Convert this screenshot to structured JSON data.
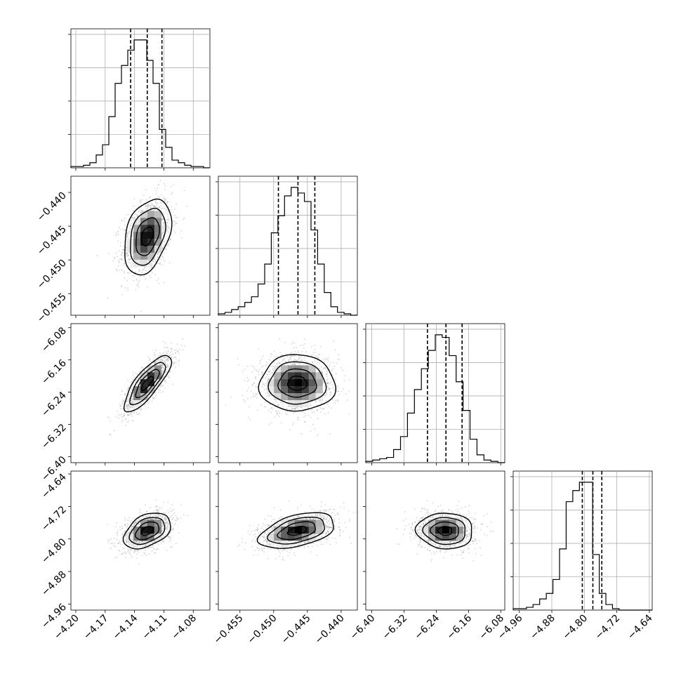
{
  "chart_data": {
    "type": "corner",
    "grid": true,
    "parameters": [
      {
        "index": 0,
        "range": [
          -4.205,
          -4.063
        ],
        "ticks": [
          -4.2,
          -4.17,
          -4.14,
          -4.11,
          -4.08
        ],
        "tick_labels": [
          "−4.20",
          "−4.17",
          "−4.14",
          "−4.11",
          "−4.08"
        ],
        "quantiles": [
          -4.144,
          -4.127,
          -4.112
        ]
      },
      {
        "index": 1,
        "range": [
          -0.4582,
          -0.4376
        ],
        "ticks": [
          -0.455,
          -0.45,
          -0.445,
          -0.44
        ],
        "tick_labels": [
          "−0.455",
          "−0.450",
          "−0.445",
          "−0.440"
        ],
        "quantiles": [
          -0.4493,
          -0.4464,
          -0.4439
        ]
      },
      {
        "index": 2,
        "range": [
          -6.415,
          -6.07
        ],
        "ticks": [
          -6.4,
          -6.32,
          -6.24,
          -6.16,
          -6.08
        ],
        "tick_labels": [
          "−6.40",
          "−6.32",
          "−6.24",
          "−6.16",
          "−6.08"
        ],
        "quantiles": [
          -6.262,
          -6.216,
          -6.176
        ]
      },
      {
        "index": 3,
        "range": [
          -4.975,
          -4.633
        ],
        "ticks": [
          -4.96,
          -4.88,
          -4.8,
          -4.72,
          -4.64
        ],
        "tick_labels": [
          "−4.96",
          "−4.88",
          "−4.80",
          "−4.72",
          "−4.64"
        ],
        "quantiles": [
          -4.805,
          -4.779,
          -4.757
        ]
      }
    ],
    "histograms": [
      {
        "param": 0,
        "counts": [
          1,
          1,
          2,
          4,
          10,
          18,
          40,
          66,
          80,
          92,
          100,
          100,
          84,
          66,
          30,
          16,
          6,
          4,
          2,
          1,
          1,
          0
        ]
      },
      {
        "param": 1,
        "counts": [
          1,
          2,
          4,
          6,
          9,
          13,
          22,
          36,
          58,
          70,
          84,
          90,
          86,
          80,
          60,
          36,
          16,
          6,
          2,
          1,
          0
        ]
      },
      {
        "param": 2,
        "counts": [
          1,
          2,
          3,
          4,
          10,
          20,
          38,
          56,
          72,
          86,
          98,
          96,
          82,
          62,
          40,
          18,
          6,
          2,
          1,
          0
        ]
      },
      {
        "param": 3,
        "counts": [
          1,
          1,
          2,
          4,
          8,
          12,
          22,
          44,
          78,
          86,
          92,
          92,
          40,
          12,
          4,
          1,
          0,
          0,
          0,
          0,
          0
        ]
      }
    ],
    "joint": [
      {
        "x_param": 0,
        "y_param": 1,
        "mean": [
          -4.127,
          -0.4465
        ],
        "sd": [
          0.012,
          0.0028
        ],
        "rho": 0.35
      },
      {
        "x_param": 0,
        "y_param": 2,
        "mean": [
          -4.127,
          -6.218
        ],
        "sd": [
          0.012,
          0.035
        ],
        "rho": 0.8
      },
      {
        "x_param": 1,
        "y_param": 2,
        "mean": [
          -0.4465,
          -6.218
        ],
        "sd": [
          0.0028,
          0.035
        ],
        "rho": 0.0
      },
      {
        "x_param": 0,
        "y_param": 3,
        "mean": [
          -4.127,
          -4.78
        ],
        "sd": [
          0.012,
          0.022
        ],
        "rho": 0.4
      },
      {
        "x_param": 1,
        "y_param": 3,
        "mean": [
          -0.4465,
          -4.78
        ],
        "sd": [
          0.0028,
          0.022
        ],
        "rho": 0.45
      },
      {
        "x_param": 2,
        "y_param": 3,
        "mean": [
          -6.218,
          -4.78
        ],
        "sd": [
          0.035,
          0.022
        ],
        "rho": -0.05
      }
    ],
    "contour_levels_sigma": [
      0.5,
      1.0,
      1.5,
      2.0
    ]
  }
}
